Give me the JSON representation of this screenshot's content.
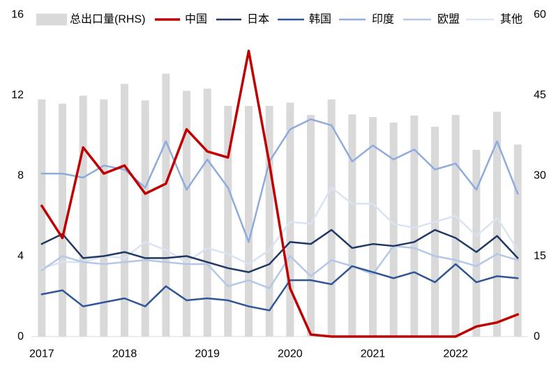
{
  "chart_data": {
    "type": "line",
    "legend": "top",
    "grid": false,
    "x": [
      2017,
      2017.25,
      2017.5,
      2017.75,
      2018,
      2018.25,
      2018.5,
      2018.75,
      2019,
      2019.25,
      2019.5,
      2019.75,
      2020,
      2020.25,
      2020.5,
      2020.75,
      2021,
      2021.25,
      2021.5,
      2021.75,
      2022,
      2022.25,
      2022.5,
      2022.75
    ],
    "xlim": [
      2016.875,
      2022.875
    ],
    "xticks": [
      2017,
      2018,
      2019,
      2020,
      2021,
      2022
    ],
    "ylim": [
      0,
      16
    ],
    "yticks": [
      0,
      4,
      8,
      12,
      16
    ],
    "y2lim": [
      0,
      60
    ],
    "y2ticks": [
      0,
      15,
      30,
      45,
      60
    ],
    "series": [
      {
        "name": "总出口量(RHS)",
        "type": "bar",
        "axis": "right",
        "color": "#D9D9D9",
        "values": [
          44.2,
          43.4,
          44.9,
          44.2,
          47.1,
          44.0,
          49.0,
          45.8,
          46.2,
          43.0,
          43.0,
          43.0,
          43.6,
          41.3,
          44.2,
          41.4,
          40.9,
          39.9,
          41.2,
          39.1,
          41.3,
          34.8,
          41.9,
          35.8
        ]
      },
      {
        "name": "中国",
        "type": "line",
        "axis": "left",
        "color": "#C00000",
        "values": [
          6.5,
          4.9,
          9.4,
          8.1,
          8.5,
          7.1,
          7.6,
          10.3,
          9.2,
          8.9,
          14.2,
          8.6,
          2.4,
          0.1,
          0,
          0,
          0,
          0,
          0,
          0,
          0,
          0.5,
          0.7,
          1.1
        ]
      },
      {
        "name": "日本",
        "type": "line",
        "axis": "left",
        "color": "#1F3864",
        "values": [
          4.6,
          5.1,
          3.9,
          4.0,
          4.2,
          3.9,
          3.9,
          4.0,
          3.7,
          3.4,
          3.2,
          3.6,
          4.7,
          4.6,
          5.3,
          4.4,
          4.6,
          4.5,
          4.7,
          5.3,
          4.9,
          4.2,
          5.0,
          3.9
        ]
      },
      {
        "name": "韩国",
        "type": "line",
        "axis": "left",
        "color": "#2F5597",
        "values": [
          2.1,
          2.3,
          1.5,
          1.7,
          1.9,
          1.5,
          2.5,
          1.8,
          1.9,
          1.8,
          1.5,
          1.3,
          2.8,
          2.8,
          2.6,
          3.5,
          3.2,
          2.9,
          3.2,
          2.7,
          3.6,
          2.7,
          3.0,
          2.9
        ]
      },
      {
        "name": "印度",
        "type": "line",
        "axis": "left",
        "color": "#8FAADC",
        "values": [
          8.1,
          8.1,
          7.9,
          8.5,
          8.3,
          7.4,
          9.7,
          7.3,
          8.8,
          7.4,
          4.7,
          8.7,
          10.3,
          10.8,
          10.5,
          8.7,
          9.5,
          8.8,
          9.3,
          8.3,
          8.6,
          7.3,
          9.7,
          7.1
        ]
      },
      {
        "name": "欧盟",
        "type": "line",
        "axis": "left",
        "color": "#B4C7E7",
        "values": [
          3.3,
          4.0,
          3.7,
          3.6,
          3.7,
          3.8,
          3.7,
          3.6,
          3.6,
          2.5,
          2.8,
          2.4,
          4.0,
          3.0,
          3.8,
          3.5,
          3.1,
          4.5,
          4.4,
          4.0,
          3.8,
          3.5,
          4.1,
          3.8
        ]
      },
      {
        "name": "其他",
        "type": "line",
        "axis": "left",
        "color": "#DAE3F3",
        "values": [
          3.4,
          3.7,
          3.7,
          4.0,
          3.9,
          4.7,
          4.3,
          3.7,
          4.4,
          4.1,
          3.6,
          4.3,
          5.7,
          5.6,
          7.4,
          6.6,
          6.6,
          5.6,
          5.4,
          5.7,
          6.0,
          5.0,
          5.9,
          4.3
        ]
      }
    ]
  }
}
